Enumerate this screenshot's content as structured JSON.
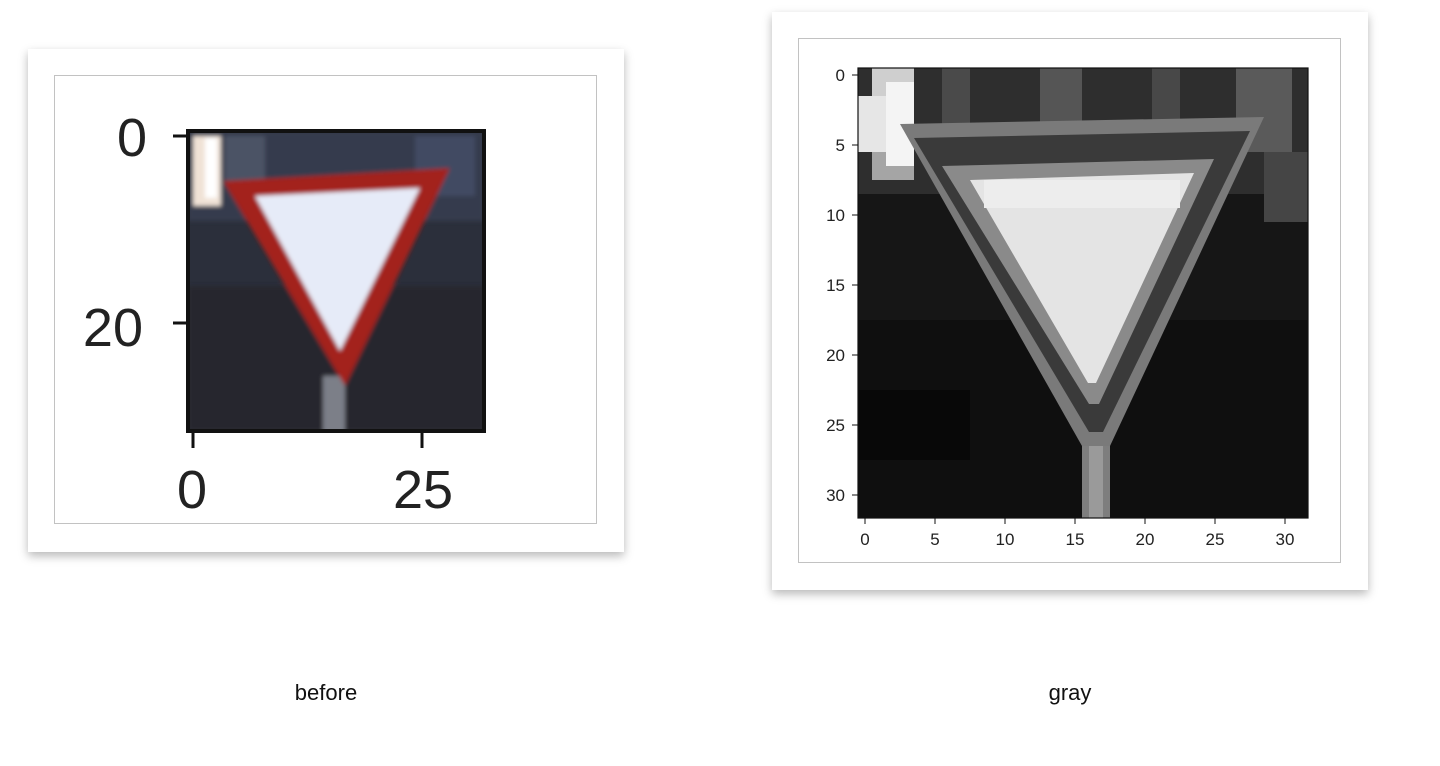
{
  "captions": {
    "before": "before",
    "gray": "gray"
  },
  "images": {
    "before": {
      "subject": "yield-sign",
      "y_ticks": [
        "0",
        "20"
      ],
      "x_ticks": [
        "0",
        "25"
      ],
      "colors": {
        "background": "#2a2d38",
        "border_red": "#a3231f",
        "inner_fill": "#e8ecf8",
        "pole": "#7a7e86",
        "corner_light": "#f2e6dc"
      }
    },
    "gray": {
      "subject": "yield-sign-grayscale",
      "y_ticks": [
        "0",
        "5",
        "10",
        "15",
        "20",
        "25",
        "30"
      ],
      "x_ticks": [
        "0",
        "5",
        "10",
        "15",
        "20",
        "25",
        "30"
      ],
      "colors": {
        "background": "#1a1a1a",
        "border_dark": "#3c3c3c",
        "border_light": "#7e7e7e",
        "inner_fill": "#e0e0e0",
        "pole": "#8a8a8a",
        "corner_light": "#eaeaea"
      }
    }
  }
}
